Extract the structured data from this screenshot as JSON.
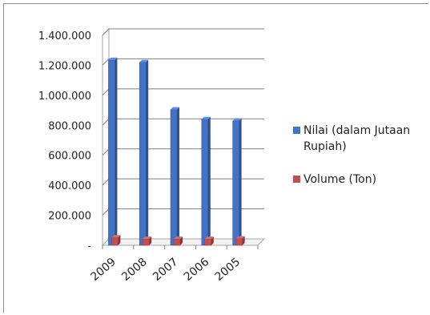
{
  "chart_data": {
    "type": "bar",
    "categories": [
      "2009",
      "2008",
      "2007",
      "2006",
      "2005"
    ],
    "series": [
      {
        "name": "Nilai (dalam Jutaan Rupiah)",
        "values": [
          1235000,
          1220000,
          905000,
          840000,
          830000
        ],
        "color": "#4472c4"
      },
      {
        "name": "Volume (Ton)",
        "values": [
          52000,
          42000,
          42000,
          42000,
          45000
        ],
        "color": "#c0504d"
      }
    ],
    "y_ticks": [
      "-",
      "200.000",
      "400.000",
      "600.000",
      "800.000",
      "1.000.000",
      "1.200.000",
      "1.400.000"
    ],
    "ylim": [
      0,
      1400000
    ],
    "grid": true,
    "legend_position": "right",
    "three_d": true
  }
}
